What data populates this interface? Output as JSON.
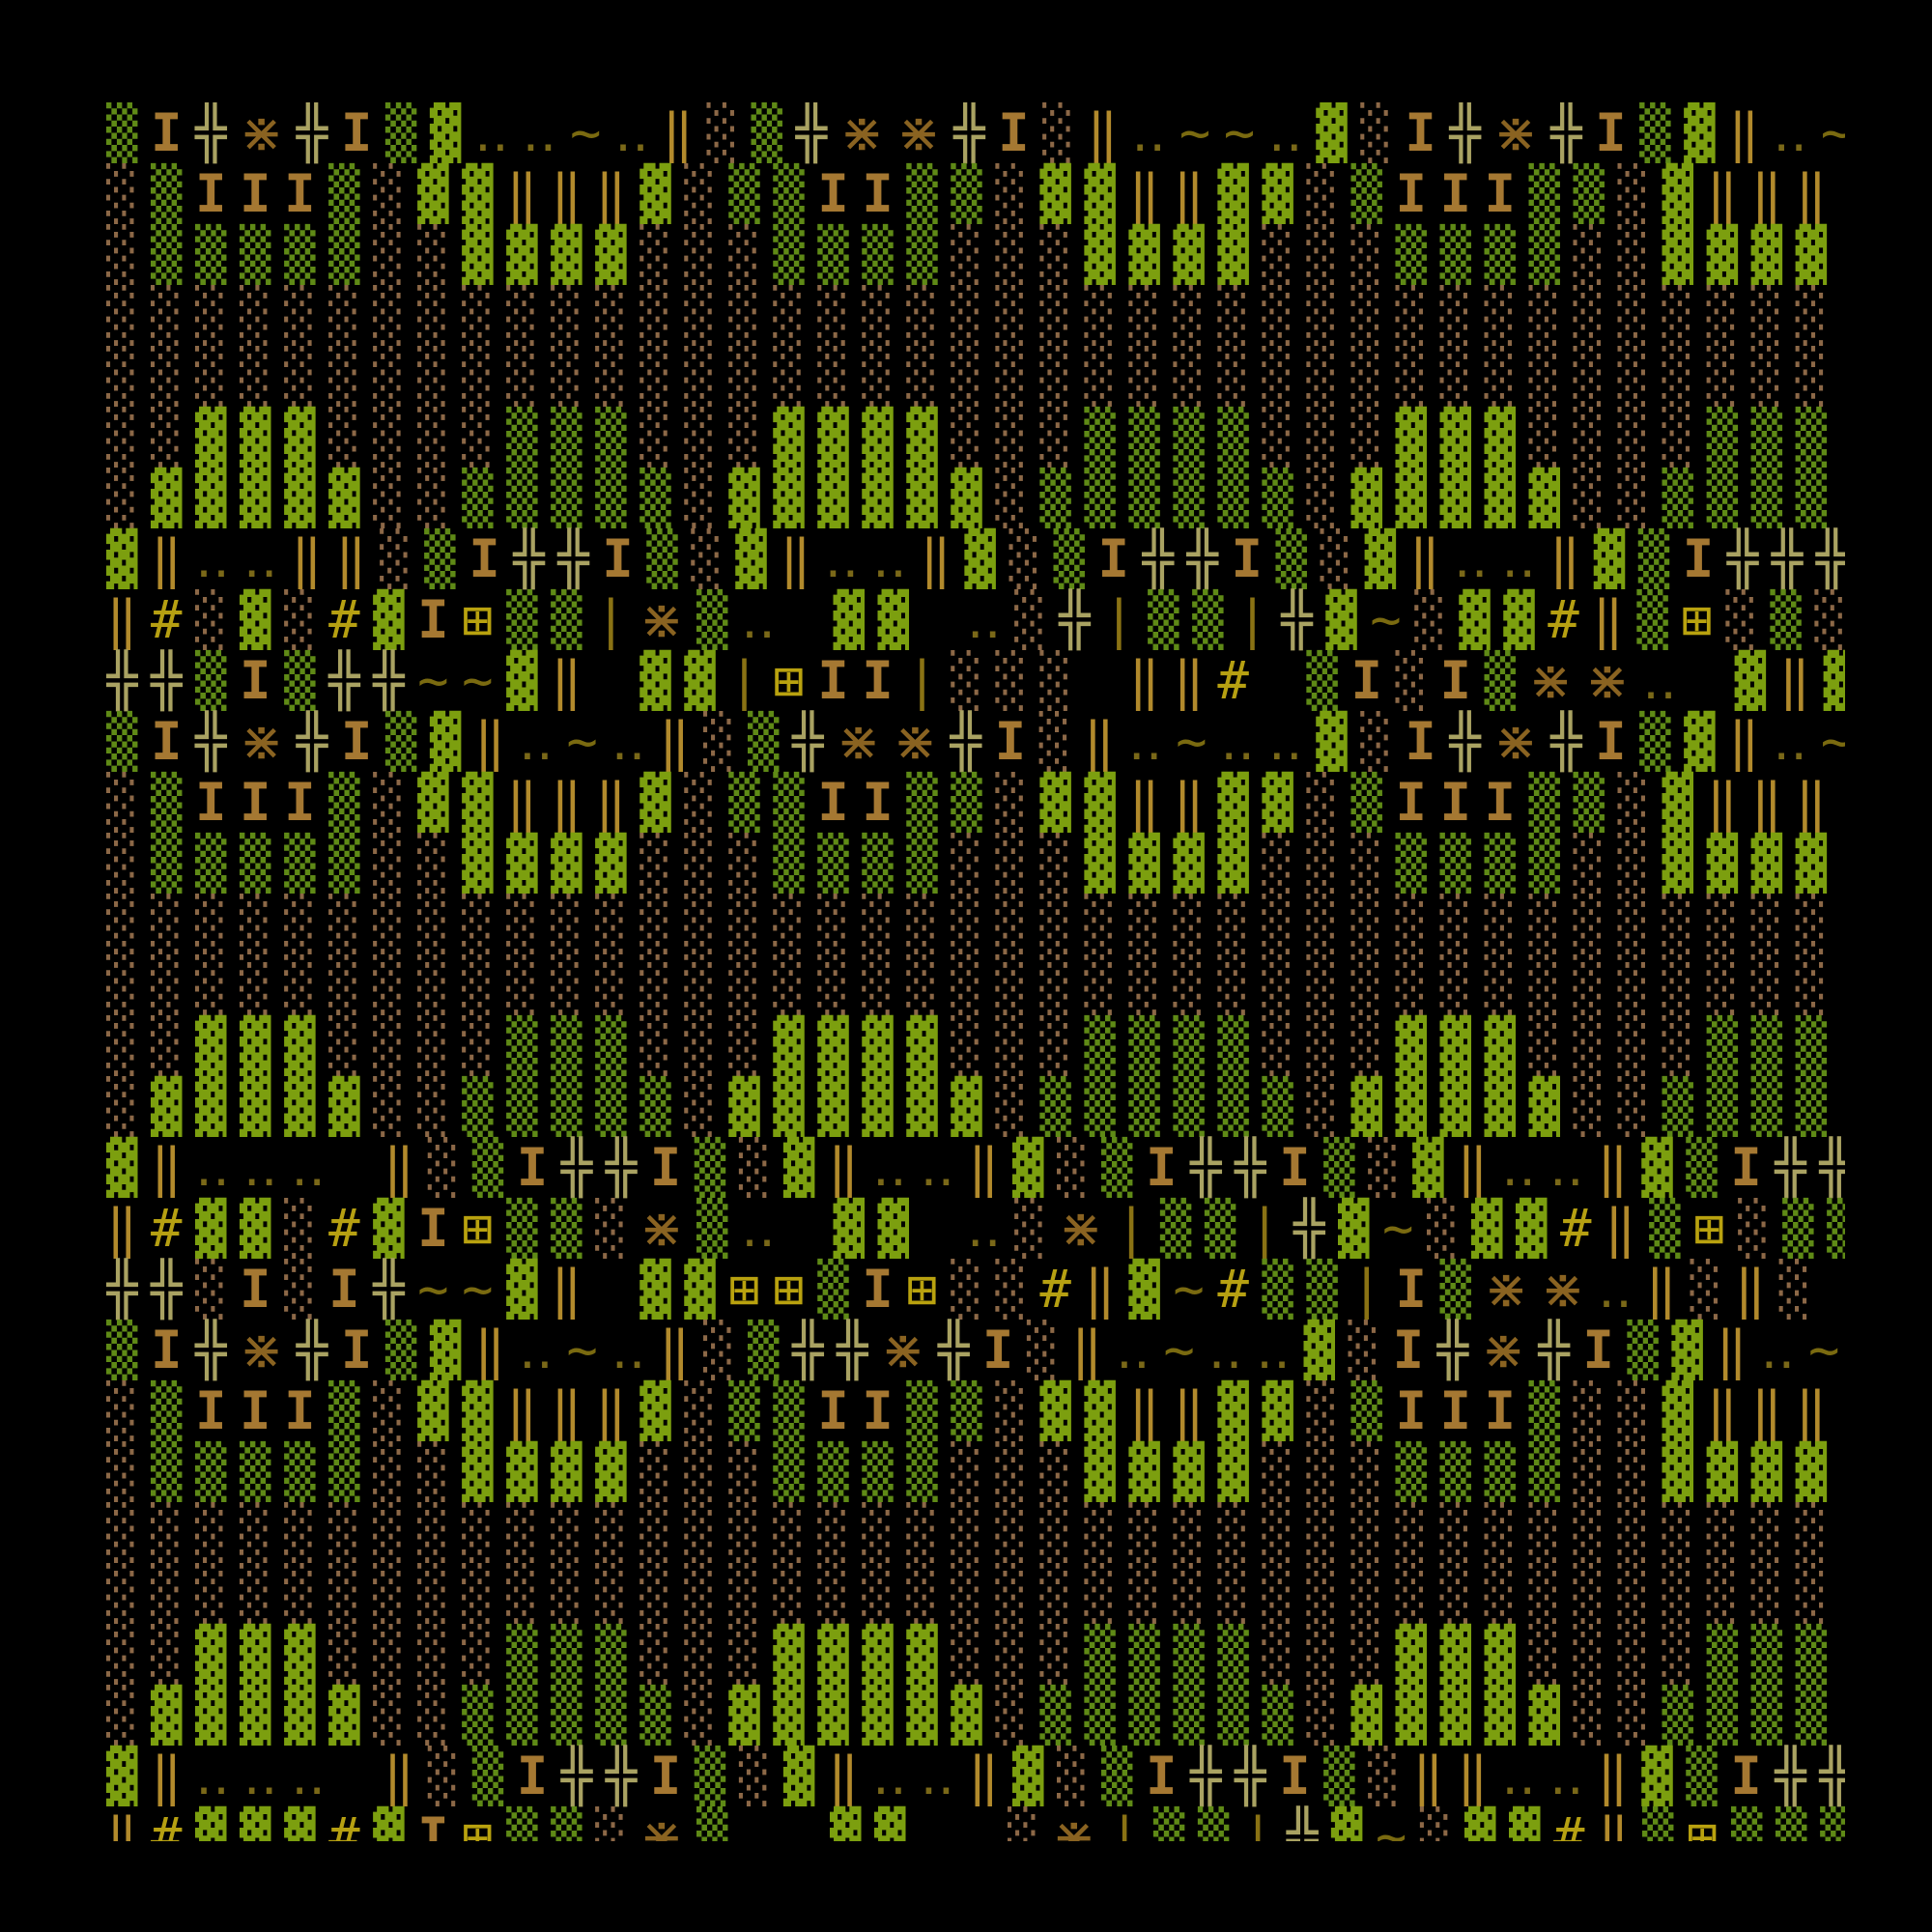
{
  "palette": {
    "background": "#000000",
    "dense_shade": "#7c9f0f",
    "medium_shade": "#5f8a16",
    "light_shade": "#8c6847",
    "serif_I": "#a57832",
    "double_cross": "#a9a262",
    "division_times": "#8a6321",
    "double_bar": "#b28a2c",
    "hash_and_grid": "#b6a012",
    "tilde": "#7a6a10"
  },
  "rows": [
    "▒I╬⋇╬I▒▓‥‥~‥‖░▒╬⋇⋇╬I░‖‥~~‥▓░I╬⋇╬I▒▓‖‥~‥",
    "░▒III▒░▓▓‖‖‖▓░▒▒II▒▒░▓▓‖‖▓▓░▒III▒▒░▓‖‖‖",
    "░▒▒▒▒▒░░▓▓▓▓░░░▒▒▒▒░░░▓▓▓▓░░░▒▒▒▒░░▓▓▓▓",
    "░░░░░░░░░░░░░░░░░░░░░░░░░░░░░░░░░░░░░░░",
    "░░░░░░░░░░░░░░░░░░░░░░░░░░░░░░░░░░░░░░░",
    "░░▓▓▓░░░░▒▒▒░░░▓▓▓▓░░░▒▒▒▒░░░▓▓▓░░░░▒▒▒",
    "░▓▓▓▓▓░░▒▒▒▒▒░▓▓▓▓▓▓░▒▒▒▒▒▒░▓▓▓▓▓░░▒▒▒▒",
    "▓‖‥‥‖‖░▒I╬╬I▒░▓‖‥‥‖▓░▒I╬╬I▒░▓‖‥‥‖▓▒I╬╬╬",
    "‖#░▓░#▓I⊞▒▒|⋇▒‥ ▓▓ ‥░╬|▒▒|╬▓~░▓▓#‖▒⊞░▒░",
    "╬╬▒I▒╬╬~~▓‖ ▓▓|⊞II|░░░ ‖‖# ▒I░I▒⋇⋇‥ ▓‖▓",
    "▒I╬⋇╬I▒▓‖‥~‥‖░▒╬⋇⋇╬I░‖‥~‥‥▓░I╬⋇╬I▒▓‖‥~‥",
    "░▒III▒░▓▓‖‖‖▓░▒▒II▒▒░▓▓‖‖▓▓░▒III▒▒░▓‖‖‖",
    "░▒▒▒▒▒░░▓▓▓▓░░░▒▒▒▒░░░▓▓▓▓░░░▒▒▒▒░░▓▓▓▓",
    "░░░░░░░░░░░░░░░░░░░░░░░░░░░░░░░░░░░░░░░",
    "░░░░░░░░░░░░░░░░░░░░░░░░░░░░░░░░░░░░░░░",
    "░░▓▓▓░░░░▒▒▒░░░▓▓▓▓░░░▒▒▒▒░░░▓▓▓░░░░▒▒▒",
    "░▓▓▓▓▓░░▒▒▒▒▒░▓▓▓▓▓▓░▒▒▒▒▒▒░▓▓▓▓▓░░▒▒▒▒",
    "▓‖‥‥‥ ‖░▒I╬╬I▒░▓‖‥‥‖▓░▒I╬╬I▒░▓‖‥‥‖▓▒I╬╬╬",
    "‖#▓▓░#▓I⊞▒▒░⋇▒‥ ▓▓ ‥░⋇|▒▒|╬▓~░▓▓#‖▒⊞░▒▒",
    "╬╬░I░I╬~~▓‖ ▓▓⊞⊞▒I⊞░░#‖▓~#▒▒|I▒⋇⋇‥‖░‖░ ",
    "▒I╬⋇╬I▒▓‖‥~‥‖░▒╬╬⋇╬I░‖‥~‥‥▓░I╬⋇╬I▒▓‖‥~‥",
    "░▒III▒░▓▓‖‖‖▓░▒▒II▒▒░▓▓‖‖▓▓░▒III▒░░▓‖‖‖",
    "░▒▒▒▒▒░░▓▓▓▓░░░▒▒▒▒░░░▓▓▓▓░░░▒▒▒▒░░▓▓▓▓",
    "░░░░░░░░░░░░░░░░░░░░░░░░░░░░░░░░░░░░░░░",
    "░░░░░░░░░░░░░░░░░░░░░░░░░░░░░░░░░░░░░░░",
    "░░▓▓▓░░░░▒▒▒░░░▓▓▓▓░░░▒▒▒▒░░░▓▓▓░░░░▒▒▒",
    "░▓▓▓▓▓░░▒▒▒▒▒░▓▓▓▓▓▓░▒▒▒▒▒▒░▓▓▓▓▓░░▒▒▒▒",
    "▓‖‥‥‥ ‖░▒I╬╬I▒░▓‖‥‥‖▓░▒I╬╬I▒░‖‖‥‥‖▓▒I╬╬╬",
    "‖#▓▓▓#▓I⊞▒▒░⋇▒  ▓▓  ░⋇|▒▒|╬▓~░▓▓#‖▒⊞▒▒▒"
  ]
}
